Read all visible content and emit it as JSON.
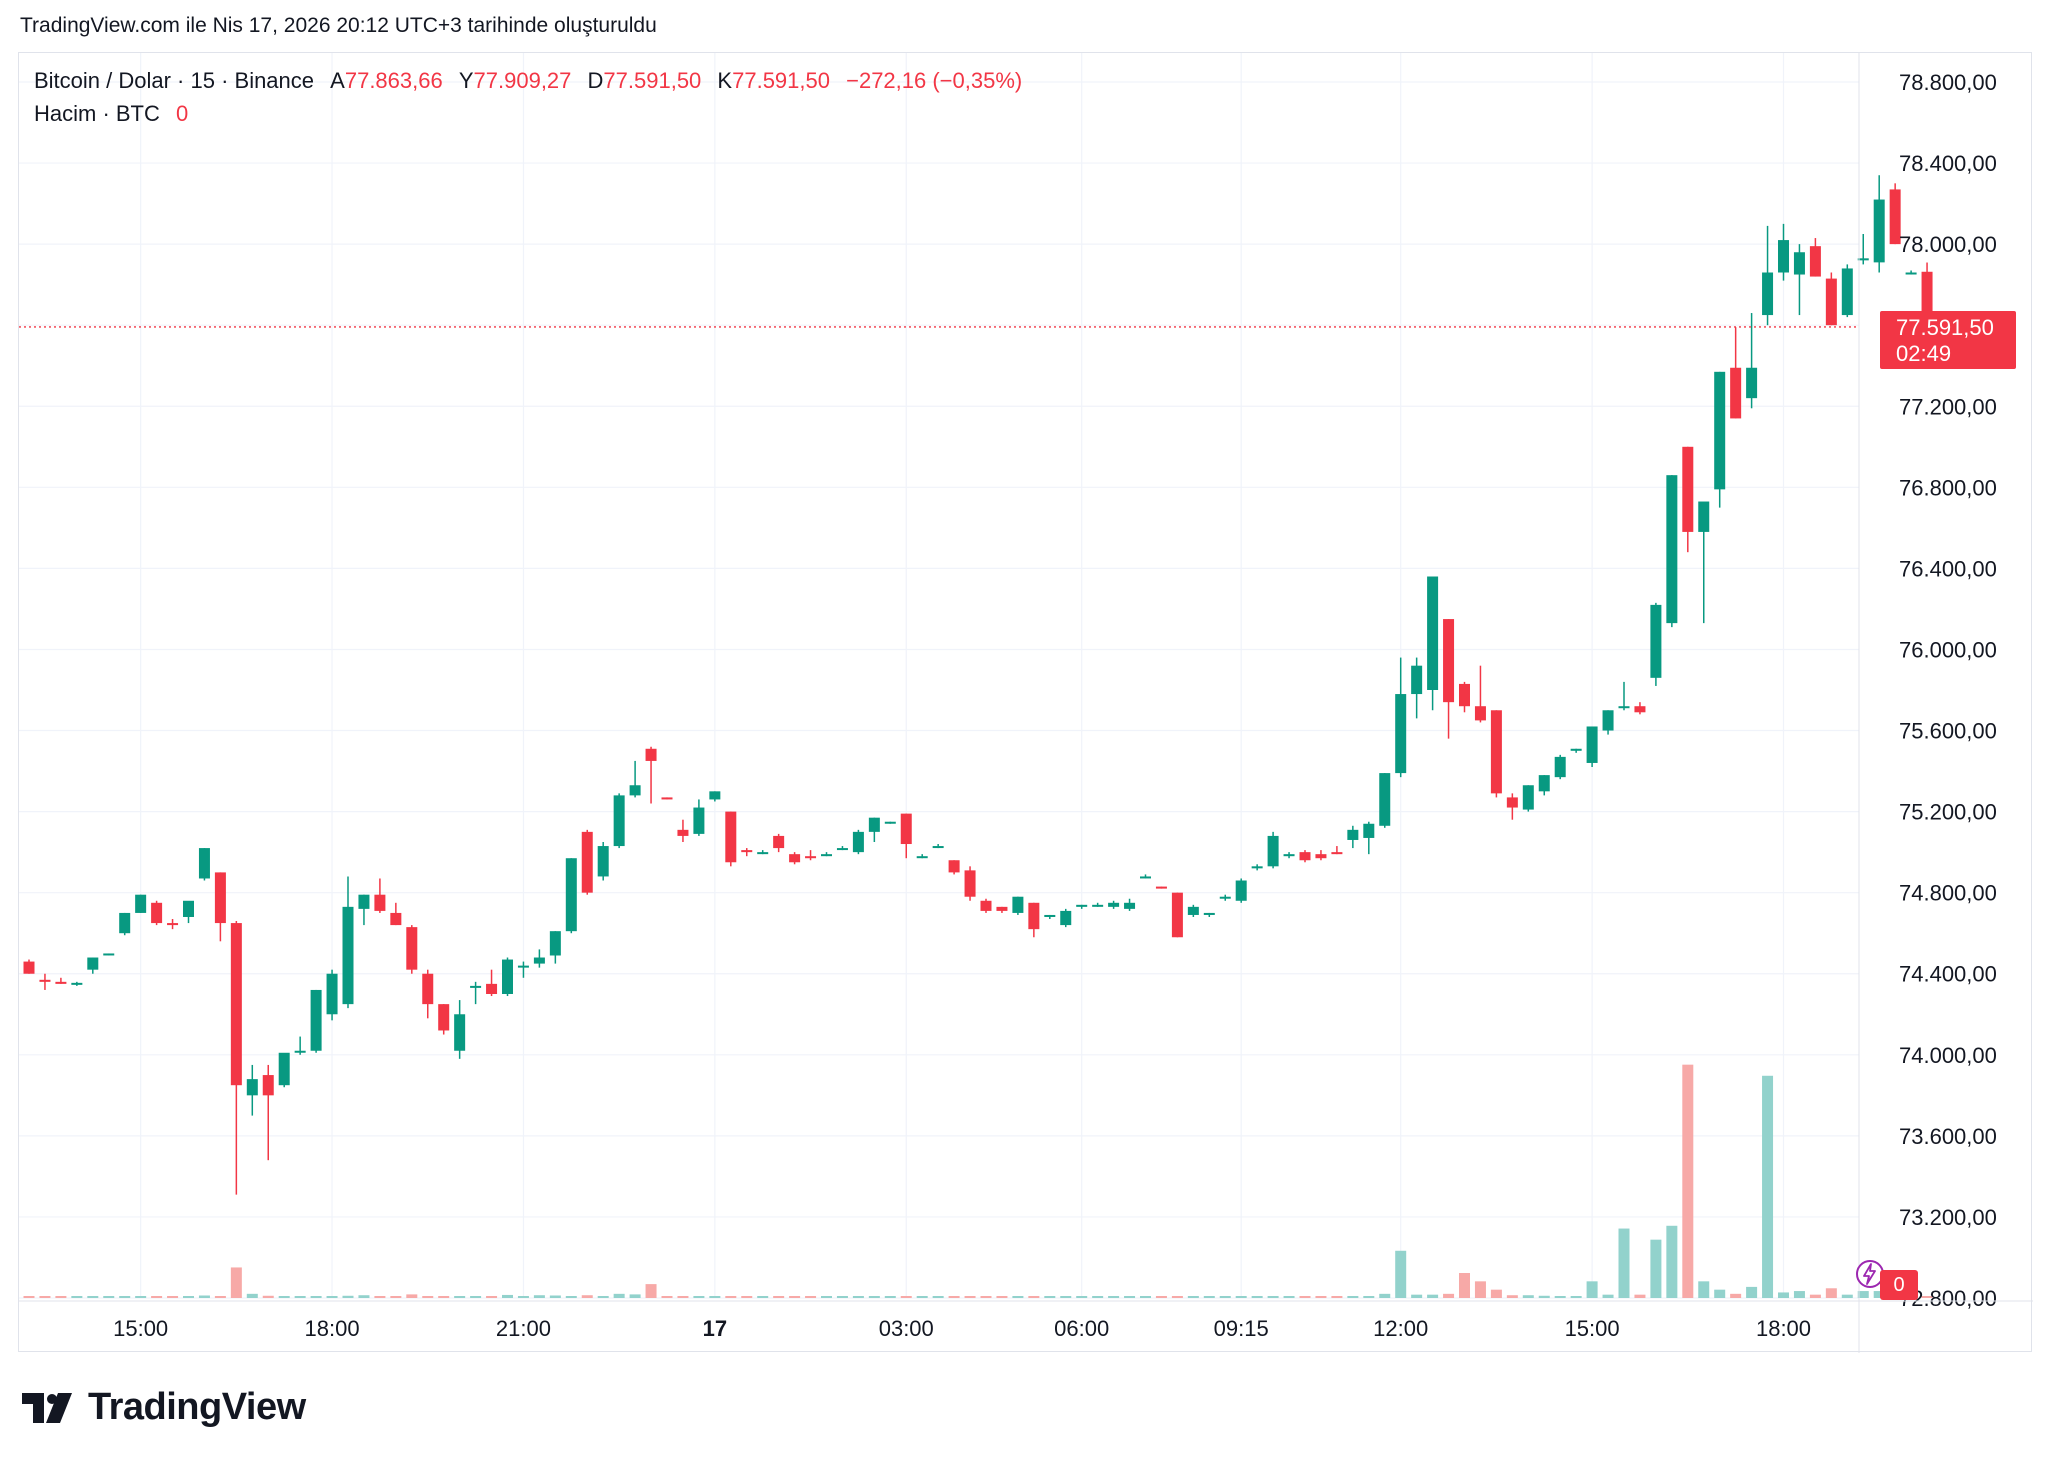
{
  "header": {
    "caption": "TradingView.com ile Nis 17, 2026 20:12 UTC+3 tarihinde oluşturuldu"
  },
  "legend": {
    "symbol": "Bitcoin / Dolar · 15 · Binance",
    "open_label": "A",
    "open": "77.863,66",
    "high_label": "Y",
    "high": "77.909,27",
    "low_label": "D",
    "low": "77.591,50",
    "close_label": "K",
    "close": "77.591,50",
    "change": "−272,16 (−0,35%)",
    "volume_label": "Hacim · BTC",
    "volume": "0"
  },
  "price_badge": {
    "price": "77.591,50",
    "countdown": "02:49"
  },
  "volume_badge": "0",
  "brand": {
    "name": "TradingView",
    "logo_icon": "tradingview-logo-icon"
  },
  "colors": {
    "up": "#089981",
    "down": "#f23645",
    "up_volume": "#92d2cc",
    "down_volume": "#f7a9a7",
    "grid": "#f0f3fa",
    "last_price_line": "#f23645"
  },
  "chart_data": {
    "type": "candlestick",
    "symbol": "Bitcoin / Dolar",
    "interval": "15",
    "exchange": "Binance",
    "y_axis": {
      "ticks": [
        72800,
        73200,
        73600,
        74000,
        74400,
        74800,
        75200,
        75600,
        76000,
        76400,
        76800,
        77200,
        77600,
        78000,
        78400,
        78800
      ],
      "tick_labels": [
        "72.800,00",
        "73.200,00",
        "73.600,00",
        "74.000,00",
        "74.400,00",
        "74.800,00",
        "75.200,00",
        "75.600,00",
        "76.000,00",
        "76.400,00",
        "76.800,00",
        "77.200,00",
        "77.600,00",
        "78.000,00",
        "78.400,00",
        "78.800,00"
      ],
      "range": [
        72800,
        78800
      ]
    },
    "x_axis": {
      "tick_labels": [
        "15:00",
        "18:00",
        "21:00",
        "17",
        "03:00",
        "06:00",
        "09:15",
        "12:00",
        "15:00",
        "18:00"
      ],
      "tick_bar_index": [
        7,
        19,
        31,
        43,
        55,
        66,
        76,
        86,
        98,
        110
      ]
    },
    "last_price": 77591.5,
    "grid": true,
    "candles": [
      {
        "o": 74460,
        "h": 74470,
        "l": 74400,
        "c": 74400,
        "v": 0.6
      },
      {
        "o": 74370,
        "h": 74400,
        "l": 74320,
        "c": 74360,
        "v": 0.4
      },
      {
        "o": 74360,
        "h": 74380,
        "l": 74350,
        "c": 74350,
        "v": 0.4
      },
      {
        "o": 74350,
        "h": 74360,
        "l": 74340,
        "c": 74355,
        "v": 0.4
      },
      {
        "o": 74420,
        "h": 74480,
        "l": 74400,
        "c": 74480,
        "v": 0.4
      },
      {
        "o": 74500,
        "h": 74500,
        "l": 74490,
        "c": 74500,
        "v": 0.3
      },
      {
        "o": 74600,
        "h": 74700,
        "l": 74590,
        "c": 74700,
        "v": 0.5
      },
      {
        "o": 74700,
        "h": 74790,
        "l": 74700,
        "c": 74790,
        "v": 0.7
      },
      {
        "o": 74750,
        "h": 74760,
        "l": 74640,
        "c": 74650,
        "v": 0.5
      },
      {
        "o": 74650,
        "h": 74670,
        "l": 74620,
        "c": 74640,
        "v": 0.6
      },
      {
        "o": 74680,
        "h": 74750,
        "l": 74650,
        "c": 74760,
        "v": 0.6
      },
      {
        "o": 74870,
        "h": 75020,
        "l": 74860,
        "c": 75020,
        "v": 0.9
      },
      {
        "o": 74900,
        "h": 74900,
        "l": 74560,
        "c": 74650,
        "v": 0.5
      },
      {
        "o": 74650,
        "h": 74660,
        "l": 73310,
        "c": 73850,
        "v": 11
      },
      {
        "o": 73800,
        "h": 73950,
        "l": 73700,
        "c": 73880,
        "v": 1.5
      },
      {
        "o": 73900,
        "h": 73950,
        "l": 73480,
        "c": 73800,
        "v": 0.8
      },
      {
        "o": 73850,
        "h": 74000,
        "l": 73840,
        "c": 74010,
        "v": 0.5
      },
      {
        "o": 74020,
        "h": 74090,
        "l": 74000,
        "c": 74020,
        "v": 0.4
      },
      {
        "o": 74020,
        "h": 74320,
        "l": 74010,
        "c": 74320,
        "v": 0.4
      },
      {
        "o": 74200,
        "h": 74420,
        "l": 74170,
        "c": 74400,
        "v": 0.4
      },
      {
        "o": 74250,
        "h": 74880,
        "l": 74230,
        "c": 74730,
        "v": 0.8
      },
      {
        "o": 74720,
        "h": 74790,
        "l": 74640,
        "c": 74790,
        "v": 1.0
      },
      {
        "o": 74790,
        "h": 74870,
        "l": 74700,
        "c": 74710,
        "v": 0.5
      },
      {
        "o": 74700,
        "h": 74750,
        "l": 74640,
        "c": 74640,
        "v": 0.3
      },
      {
        "o": 74630,
        "h": 74640,
        "l": 74400,
        "c": 74420,
        "v": 1.3
      },
      {
        "o": 74400,
        "h": 74420,
        "l": 74180,
        "c": 74250,
        "v": 0.6
      },
      {
        "o": 74250,
        "h": 74250,
        "l": 74100,
        "c": 74120,
        "v": 0.5
      },
      {
        "o": 74020,
        "h": 74270,
        "l": 73980,
        "c": 74200,
        "v": 0.7
      },
      {
        "o": 74340,
        "h": 74360,
        "l": 74250,
        "c": 74340,
        "v": 0.4
      },
      {
        "o": 74350,
        "h": 74420,
        "l": 74290,
        "c": 74300,
        "v": 0.4
      },
      {
        "o": 74300,
        "h": 74480,
        "l": 74290,
        "c": 74470,
        "v": 1.1
      },
      {
        "o": 74440,
        "h": 74460,
        "l": 74380,
        "c": 74440,
        "v": 0.7
      },
      {
        "o": 74450,
        "h": 74520,
        "l": 74430,
        "c": 74480,
        "v": 1.0
      },
      {
        "o": 74490,
        "h": 74610,
        "l": 74450,
        "c": 74610,
        "v": 0.9
      },
      {
        "o": 74610,
        "h": 74970,
        "l": 74600,
        "c": 74970,
        "v": 0.6
      },
      {
        "o": 75100,
        "h": 75110,
        "l": 74790,
        "c": 74800,
        "v": 1.0
      },
      {
        "o": 74880,
        "h": 75050,
        "l": 74860,
        "c": 75030,
        "v": 0.7
      },
      {
        "o": 75030,
        "h": 75290,
        "l": 75020,
        "c": 75280,
        "v": 1.5
      },
      {
        "o": 75280,
        "h": 75450,
        "l": 75270,
        "c": 75330,
        "v": 1.3
      },
      {
        "o": 75510,
        "h": 75520,
        "l": 75240,
        "c": 75450,
        "v": 5
      },
      {
        "o": 75270,
        "h": 75270,
        "l": 75260,
        "c": 75260,
        "v": 0.2
      },
      {
        "o": 75110,
        "h": 75160,
        "l": 75050,
        "c": 75080,
        "v": 0.3
      },
      {
        "o": 75090,
        "h": 75260,
        "l": 75080,
        "c": 75220,
        "v": 0.3
      },
      {
        "o": 75260,
        "h": 75300,
        "l": 75250,
        "c": 75300,
        "v": 0.3
      },
      {
        "o": 75200,
        "h": 75200,
        "l": 74930,
        "c": 74950,
        "v": 0.4
      },
      {
        "o": 75010,
        "h": 75020,
        "l": 74980,
        "c": 75000,
        "v": 0.3
      },
      {
        "o": 75000,
        "h": 75010,
        "l": 74990,
        "c": 75000,
        "v": 0.3
      },
      {
        "o": 75080,
        "h": 75090,
        "l": 75000,
        "c": 75020,
        "v": 0.3
      },
      {
        "o": 74990,
        "h": 75000,
        "l": 74940,
        "c": 74950,
        "v": 0.3
      },
      {
        "o": 74980,
        "h": 75010,
        "l": 74960,
        "c": 74970,
        "v": 0.4
      },
      {
        "o": 74990,
        "h": 75000,
        "l": 74980,
        "c": 74990,
        "v": 0.3
      },
      {
        "o": 75020,
        "h": 75030,
        "l": 75010,
        "c": 75020,
        "v": 0.3
      },
      {
        "o": 75000,
        "h": 75110,
        "l": 74990,
        "c": 75100,
        "v": 0.3
      },
      {
        "o": 75100,
        "h": 75170,
        "l": 75050,
        "c": 75170,
        "v": 0.3
      },
      {
        "o": 75150,
        "h": 75150,
        "l": 75140,
        "c": 75150,
        "v": 0.2
      },
      {
        "o": 75190,
        "h": 75190,
        "l": 74970,
        "c": 75040,
        "v": 0.3
      },
      {
        "o": 74980,
        "h": 74990,
        "l": 74970,
        "c": 74980,
        "v": 0.3
      },
      {
        "o": 75030,
        "h": 75040,
        "l": 75020,
        "c": 75030,
        "v": 0.3
      },
      {
        "o": 74960,
        "h": 74960,
        "l": 74890,
        "c": 74900,
        "v": 0.3
      },
      {
        "o": 74910,
        "h": 74930,
        "l": 74760,
        "c": 74780,
        "v": 0.4
      },
      {
        "o": 74760,
        "h": 74770,
        "l": 74700,
        "c": 74710,
        "v": 0.3
      },
      {
        "o": 74730,
        "h": 74730,
        "l": 74700,
        "c": 74710,
        "v": 0.2
      },
      {
        "o": 74700,
        "h": 74780,
        "l": 74690,
        "c": 74780,
        "v": 0.3
      },
      {
        "o": 74750,
        "h": 74750,
        "l": 74580,
        "c": 74620,
        "v": 0.3
      },
      {
        "o": 74680,
        "h": 74690,
        "l": 74670,
        "c": 74690,
        "v": 0.3
      },
      {
        "o": 74640,
        "h": 74720,
        "l": 74630,
        "c": 74710,
        "v": 0.3
      },
      {
        "o": 74730,
        "h": 74740,
        "l": 74720,
        "c": 74740,
        "v": 0.5
      },
      {
        "o": 74740,
        "h": 74750,
        "l": 74730,
        "c": 74740,
        "v": 0.3
      },
      {
        "o": 74730,
        "h": 74760,
        "l": 74720,
        "c": 74750,
        "v": 0.3
      },
      {
        "o": 74720,
        "h": 74770,
        "l": 74710,
        "c": 74750,
        "v": 0.3
      },
      {
        "o": 74880,
        "h": 74890,
        "l": 74870,
        "c": 74880,
        "v": 0.3
      },
      {
        "o": 74830,
        "h": 74830,
        "l": 74820,
        "c": 74820,
        "v": 0.3
      },
      {
        "o": 74800,
        "h": 74800,
        "l": 74580,
        "c": 74580,
        "v": 0.3
      },
      {
        "o": 74690,
        "h": 74740,
        "l": 74680,
        "c": 74730,
        "v": 0.3
      },
      {
        "o": 74690,
        "h": 74700,
        "l": 74680,
        "c": 74700,
        "v": 0.3
      },
      {
        "o": 74780,
        "h": 74790,
        "l": 74760,
        "c": 74780,
        "v": 0.5
      },
      {
        "o": 74760,
        "h": 74870,
        "l": 74750,
        "c": 74860,
        "v": 0.4
      },
      {
        "o": 74920,
        "h": 74940,
        "l": 74910,
        "c": 74930,
        "v": 0.3
      },
      {
        "o": 74930,
        "h": 75100,
        "l": 74920,
        "c": 75080,
        "v": 0.3
      },
      {
        "o": 74980,
        "h": 75000,
        "l": 74970,
        "c": 74990,
        "v": 0.3
      },
      {
        "o": 75000,
        "h": 75010,
        "l": 74950,
        "c": 74960,
        "v": 0.3
      },
      {
        "o": 74990,
        "h": 75010,
        "l": 74960,
        "c": 74970,
        "v": 0.3
      },
      {
        "o": 75000,
        "h": 75030,
        "l": 74990,
        "c": 74990,
        "v": 0.3
      },
      {
        "o": 75060,
        "h": 75130,
        "l": 75020,
        "c": 75110,
        "v": 0.3
      },
      {
        "o": 75070,
        "h": 75150,
        "l": 74990,
        "c": 75140,
        "v": 0.3
      },
      {
        "o": 75130,
        "h": 75390,
        "l": 75120,
        "c": 75390,
        "v": 1.5
      },
      {
        "o": 75390,
        "h": 75960,
        "l": 75370,
        "c": 75780,
        "v": 17
      },
      {
        "o": 75780,
        "h": 75960,
        "l": 75660,
        "c": 75920,
        "v": 1.2
      },
      {
        "o": 75800,
        "h": 76360,
        "l": 75700,
        "c": 76360,
        "v": 1.2
      },
      {
        "o": 76150,
        "h": 76150,
        "l": 75560,
        "c": 75740,
        "v": 1.5
      },
      {
        "o": 75830,
        "h": 75840,
        "l": 75690,
        "c": 75720,
        "v": 9
      },
      {
        "o": 75720,
        "h": 75920,
        "l": 75640,
        "c": 75650,
        "v": 6
      },
      {
        "o": 75700,
        "h": 75700,
        "l": 75270,
        "c": 75290,
        "v": 3
      },
      {
        "o": 75270,
        "h": 75290,
        "l": 75160,
        "c": 75220,
        "v": 1
      },
      {
        "o": 75210,
        "h": 75330,
        "l": 75200,
        "c": 75330,
        "v": 1
      },
      {
        "o": 75300,
        "h": 75380,
        "l": 75280,
        "c": 75380,
        "v": 0.8
      },
      {
        "o": 75370,
        "h": 75480,
        "l": 75360,
        "c": 75470,
        "v": 0.6
      },
      {
        "o": 75500,
        "h": 75510,
        "l": 75490,
        "c": 75510,
        "v": 0.5
      },
      {
        "o": 75440,
        "h": 75620,
        "l": 75420,
        "c": 75620,
        "v": 6
      },
      {
        "o": 75600,
        "h": 75700,
        "l": 75580,
        "c": 75700,
        "v": 1.2
      },
      {
        "o": 75720,
        "h": 75840,
        "l": 75700,
        "c": 75720,
        "v": 25
      },
      {
        "o": 75720,
        "h": 75740,
        "l": 75680,
        "c": 75690,
        "v": 1.2
      },
      {
        "o": 75860,
        "h": 76230,
        "l": 75820,
        "c": 76220,
        "v": 21
      },
      {
        "o": 76130,
        "h": 76860,
        "l": 76110,
        "c": 76860,
        "v": 26
      },
      {
        "o": 77000,
        "h": 77000,
        "l": 76480,
        "c": 76580,
        "v": 84
      },
      {
        "o": 76580,
        "h": 76720,
        "l": 76130,
        "c": 76730,
        "v": 6
      },
      {
        "o": 76790,
        "h": 77370,
        "l": 76700,
        "c": 77370,
        "v": 3
      },
      {
        "o": 77390,
        "h": 77590,
        "l": 77140,
        "c": 77140,
        "v": 1.5
      },
      {
        "o": 77240,
        "h": 77660,
        "l": 77190,
        "c": 77390,
        "v": 4
      },
      {
        "o": 77650,
        "h": 78090,
        "l": 77600,
        "c": 77860,
        "v": 80
      },
      {
        "o": 77860,
        "h": 78100,
        "l": 77820,
        "c": 78020,
        "v": 2
      },
      {
        "o": 77850,
        "h": 78000,
        "l": 77650,
        "c": 77960,
        "v": 2.5
      },
      {
        "o": 77990,
        "h": 78030,
        "l": 77840,
        "c": 77840,
        "v": 1.2
      },
      {
        "o": 77830,
        "h": 77860,
        "l": 77600,
        "c": 77600,
        "v": 3.5
      },
      {
        "o": 77650,
        "h": 77900,
        "l": 77640,
        "c": 77880,
        "v": 1.2
      },
      {
        "o": 77920,
        "h": 78050,
        "l": 77900,
        "c": 77930,
        "v": 2.5
      },
      {
        "o": 77910,
        "h": 78340,
        "l": 77860,
        "c": 78220,
        "v": 2.5
      },
      {
        "o": 78270,
        "h": 78300,
        "l": 78000,
        "c": 78000,
        "v": 9
      },
      {
        "o": 77860,
        "h": 77870,
        "l": 77850,
        "c": 77860,
        "v": 0.3
      },
      {
        "o": 77863.66,
        "h": 77909.27,
        "l": 77591.5,
        "c": 77591.5,
        "v": 0
      }
    ]
  }
}
